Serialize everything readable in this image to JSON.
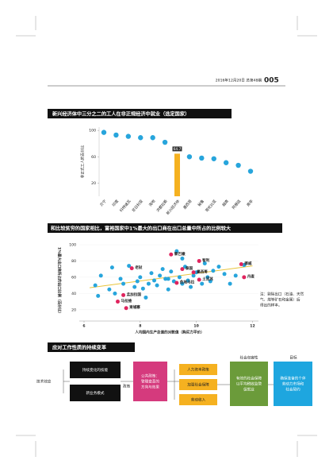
{
  "header": {
    "date": "2016年12月20日 总第48期",
    "page": "005"
  },
  "chart_data": [
    {
      "type": "dot",
      "title": "新兴经济体中三分之二的工人在非正规经济中就业（选定国家）",
      "ylabel": "非正式工人的百分比",
      "categories": [
        "贝宁",
        "印度",
        "科特迪瓦",
        "尼日利亚",
        "海地",
        "洪都拉斯",
        "新兴经济体",
        "墨西哥",
        "秘鲁",
        "哥伦比亚",
        "越南",
        "阿根廷",
        "南非"
      ],
      "values": [
        97,
        93,
        91,
        89,
        89,
        82,
        64.7,
        60,
        58,
        57,
        51,
        47,
        38
      ],
      "value_labels": [
        null,
        null,
        null,
        null,
        null,
        null,
        "64.7",
        null,
        null,
        null,
        null,
        null,
        null
      ],
      "bar_indices": [
        6
      ],
      "color": "#27a5dc",
      "bar_color": "#f5b120",
      "ylim": [
        0,
        105
      ],
      "yticks": [
        20,
        60,
        100
      ]
    },
    {
      "type": "scatter",
      "title": "和比较贫穷的国家相比，富裕国家中1%最大的出口商在出口总量中所占的比例较大",
      "xlabel": "人均国内生产总值的对数值（购买力平价）",
      "ylabel": "1%最大出口商所占的出口比例（百分比）",
      "note": [
        "注：剔除出口（石油、天然",
        "气、煤等矿石和金属）后",
        "得出的样本。"
      ],
      "xlim": [
        6,
        12.1
      ],
      "ylim": [
        10,
        100
      ],
      "xticks": [
        6,
        8,
        10,
        12
      ],
      "yticks": [
        20,
        40,
        60,
        80,
        100
      ],
      "series": [
        {
          "color": "#27a5dc",
          "x": [
            6.4,
            6.6,
            6.9,
            7.0,
            7.1,
            7.3,
            7.4,
            7.6,
            7.8,
            7.9,
            8.0,
            8.1,
            8.3,
            8.4,
            8.5,
            8.6,
            8.7,
            8.8,
            8.9,
            9.0,
            9.1,
            9.2,
            9.3,
            9.4,
            9.5,
            9.6,
            9.7,
            9.8,
            9.9,
            10.0,
            10.2,
            10.3,
            10.4,
            10.5,
            10.6,
            10.8,
            11.0,
            11.2,
            11.4,
            11.7,
            6.5,
            8.2,
            9.0,
            9.5
          ],
          "values": [
            50,
            62,
            45,
            72,
            40,
            58,
            52,
            74,
            48,
            55,
            60,
            46,
            52,
            65,
            56,
            50,
            62,
            70,
            58,
            45,
            67,
            55,
            92,
            60,
            52,
            73,
            56,
            48,
            62,
            66,
            52,
            77,
            60,
            55,
            68,
            73,
            64,
            52,
            62,
            75,
            37,
            35,
            58,
            83
          ]
        },
        {
          "color": "#e0245e",
          "labels": [
            "黎巴嫩",
            "智利",
            "挪威",
            "老挝",
            "泰国",
            "墨西哥",
            "土耳其",
            "危地马拉",
            "丹麦",
            "孟加拉国",
            "马拉维",
            "柬埔寨"
          ],
          "x": [
            9.1,
            10.1,
            11.6,
            7.7,
            9.5,
            9.9,
            10.1,
            9.3,
            11.7,
            7.4,
            7.2,
            7.5
          ],
          "values": [
            88,
            80,
            76,
            71,
            70,
            66,
            57,
            53,
            60,
            38,
            30,
            22
          ]
        }
      ],
      "trend": {
        "color": "#e8c43a",
        "x": [
          6.2,
          12
        ],
        "values": [
          47,
          74
        ]
      }
    }
  ],
  "diagram": {
    "title": "应对工作性质的持续变革",
    "column_headers": [
      "社会包容性",
      "目标"
    ],
    "left_label": "技术效应",
    "drivers": [
      "持续变化的技能",
      "新业务模式"
    ],
    "policy_label": "政策",
    "policy_box": [
      "公共政策：",
      "管理变革的",
      "方向与效果"
    ],
    "policy_items": [
      "人力资本政策",
      "加强社会保障",
      "劳动收入"
    ],
    "inclusion_box": [
      "有效的社会保障",
      "以平均税收监管",
      "促就业"
    ],
    "goal_box": [
      "确保准备的个体",
      "劳动力市场和",
      "社会契约"
    ]
  }
}
